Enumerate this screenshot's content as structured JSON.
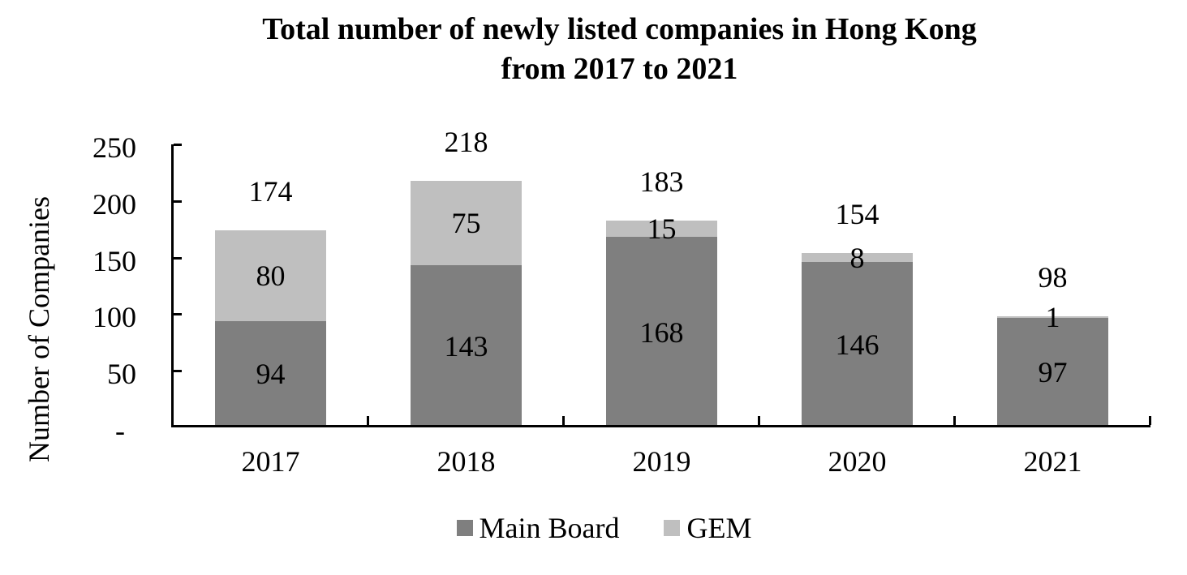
{
  "chart_data": {
    "type": "bar",
    "stacked": true,
    "title_lines": [
      "Total number of newly listed companies in Hong Kong",
      "from 2017 to 2021"
    ],
    "ylabel": "Number of Companies",
    "xlabel": "",
    "categories": [
      "2017",
      "2018",
      "2019",
      "2020",
      "2021"
    ],
    "series": [
      {
        "name": "Main Board",
        "color": "#7f7f7f",
        "values": [
          94,
          143,
          168,
          146,
          97
        ]
      },
      {
        "name": "GEM",
        "color": "#bfbfbf",
        "values": [
          80,
          75,
          15,
          8,
          1
        ]
      }
    ],
    "totals": [
      174,
      218,
      183,
      154,
      98
    ],
    "ylim": [
      0,
      250
    ],
    "yticks": [
      {
        "value": 250,
        "label": "250"
      },
      {
        "value": 200,
        "label": "200"
      },
      {
        "value": 150,
        "label": "150"
      },
      {
        "value": 100,
        "label": "100"
      },
      {
        "value": 50,
        "label": "50"
      },
      {
        "value": 0,
        "label": "-"
      }
    ],
    "grid": false,
    "legend_position": "bottom",
    "colors": {
      "axis": "#000000",
      "text": "#000000",
      "background": "#ffffff"
    }
  }
}
